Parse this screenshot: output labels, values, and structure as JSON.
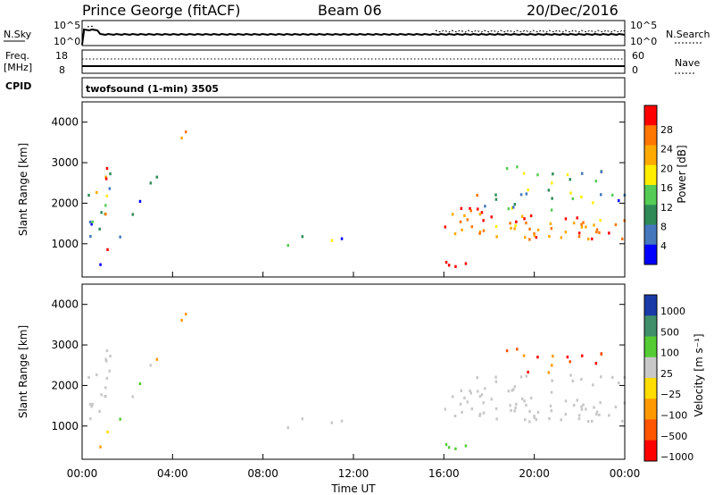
{
  "header": {
    "station": "Prince George (fitACF)",
    "beam": "Beam 06",
    "date": "20/Dec/2016"
  },
  "panels": {
    "nsky_label": "N.Sky",
    "nsky_ticks": [
      "10^5",
      "10^0"
    ],
    "nsearch_label": "N.Search",
    "freq_label": "Freq.",
    "freq_unit": "[MHz]",
    "freq_ticks": [
      "18",
      "8"
    ],
    "nave_label": "Nave",
    "nave_ticks": [
      "60",
      "0"
    ],
    "cpid_label": "CPID",
    "cpid_text": "twofsound (1-min) 3505"
  },
  "chart_data": [
    {
      "type": "heatmap",
      "title": "",
      "ylabel": "Slant Range [km]",
      "ylim": [
        180,
        4500
      ],
      "yticks": [
        "4000",
        "3000",
        "2000",
        "1000"
      ],
      "xlabel": "",
      "colorbar": {
        "label": "Power [dB]",
        "ticks": [
          "28",
          "24",
          "20",
          "16",
          "12",
          "8",
          "4"
        ],
        "colors": [
          "#ff0000",
          "#ff7700",
          "#ffaa00",
          "#ffee00",
          "#55cc55",
          "#2e8b57",
          "#4477bb",
          "#0000ff"
        ]
      }
    },
    {
      "type": "heatmap",
      "title": "",
      "ylabel": "Slant Range [km]",
      "ylim": [
        180,
        4500
      ],
      "yticks": [
        "4000",
        "3000",
        "2000",
        "1000"
      ],
      "xlabel": "Time UT",
      "xticks": [
        "00:00",
        "04:00",
        "08:00",
        "12:00",
        "16:00",
        "20:00",
        "00:00"
      ],
      "colorbar": {
        "label": "Velocity [m s⁻¹]",
        "ticks": [
          "1000",
          "500",
          "100",
          "25",
          "−25",
          "−100",
          "−500",
          "−1000"
        ],
        "colors": [
          "#1a3aa8",
          "#3f8f6a",
          "#55cc33",
          "#c8c8c8",
          "#ffdd00",
          "#ff9900",
          "#ff5500",
          "#ff0000"
        ]
      }
    }
  ]
}
